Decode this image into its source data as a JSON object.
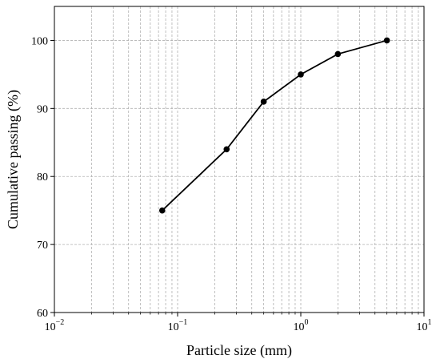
{
  "chart_data": {
    "type": "line",
    "title": "",
    "xlabel": "Particle size (mm)",
    "ylabel": "Cumulative passing (%)",
    "x_scale": "log",
    "xlim": [
      0.01,
      10
    ],
    "ylim": [
      60,
      105
    ],
    "grid": true,
    "x_ticks": [
      0.01,
      0.1,
      1,
      10
    ],
    "x_tick_labels": [
      {
        "base": "10",
        "exp": "−2"
      },
      {
        "base": "10",
        "exp": "−1"
      },
      {
        "base": "10",
        "exp": "0"
      },
      {
        "base": "10",
        "exp": "1"
      }
    ],
    "y_ticks": [
      60,
      70,
      80,
      90,
      100
    ],
    "y_tick_labels": [
      "60",
      "70",
      "80",
      "90",
      "100"
    ],
    "series": [
      {
        "x": [
          0.075,
          0.25,
          0.5,
          1,
          2,
          5
        ],
        "y": [
          75,
          84,
          91,
          95,
          98,
          100
        ],
        "color": "#000000"
      }
    ]
  }
}
